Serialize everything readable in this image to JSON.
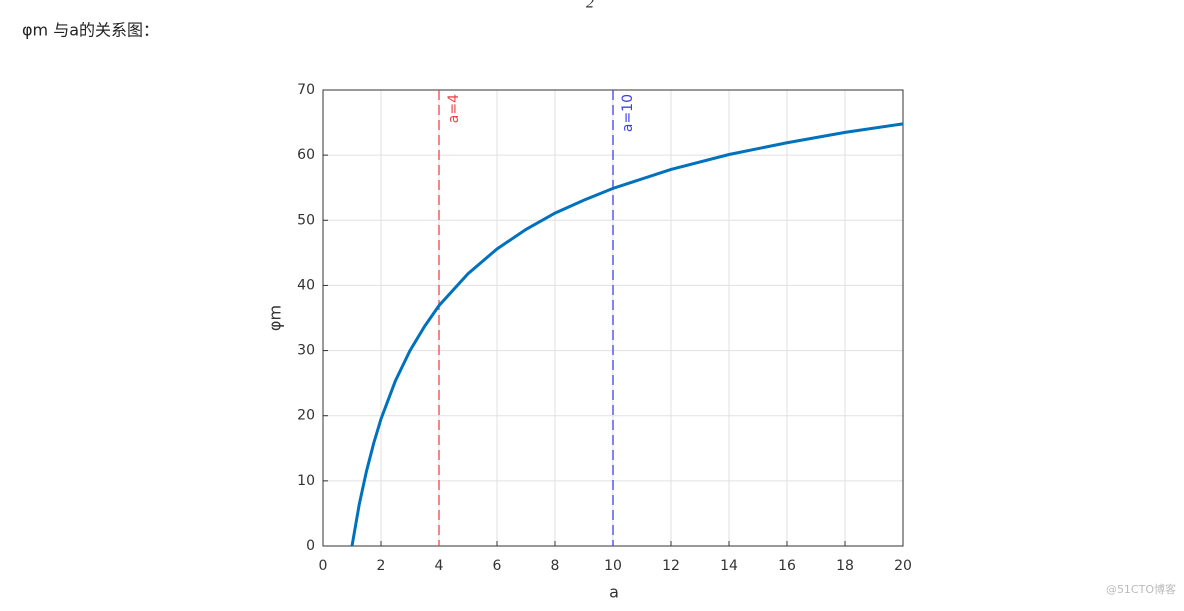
{
  "fragment": "2",
  "caption": "φm 与a的关系图：",
  "watermark": "@51CTO博客",
  "chart_data": {
    "type": "line",
    "xlabel": "a",
    "ylabel": "φm",
    "xlim": [
      0,
      20
    ],
    "xticks": [
      0,
      2,
      4,
      6,
      8,
      10,
      12,
      14,
      16,
      18,
      20
    ],
    "ylim": [
      0,
      70
    ],
    "yticks": [
      0,
      10,
      20,
      30,
      40,
      50,
      60,
      70
    ],
    "grid": true,
    "series": [
      {
        "color": "#0072bd",
        "x": [
          1,
          1.25,
          1.5,
          1.75,
          2,
          2.5,
          3,
          3.5,
          4,
          5,
          6,
          7,
          8,
          9,
          10,
          12,
          14,
          16,
          18,
          20
        ],
        "values": [
          0,
          6.4,
          11.5,
          15.8,
          19.5,
          25.4,
          30,
          33.7,
          36.9,
          41.8,
          45.6,
          48.6,
          51.1,
          53.1,
          54.9,
          57.8,
          60.1,
          61.9,
          63.5,
          64.8
        ]
      }
    ],
    "vlines": [
      {
        "x": 4,
        "label": "a=4",
        "color": "#e8474a"
      },
      {
        "x": 10,
        "label": "a=10",
        "color": "#4040e8"
      }
    ]
  }
}
